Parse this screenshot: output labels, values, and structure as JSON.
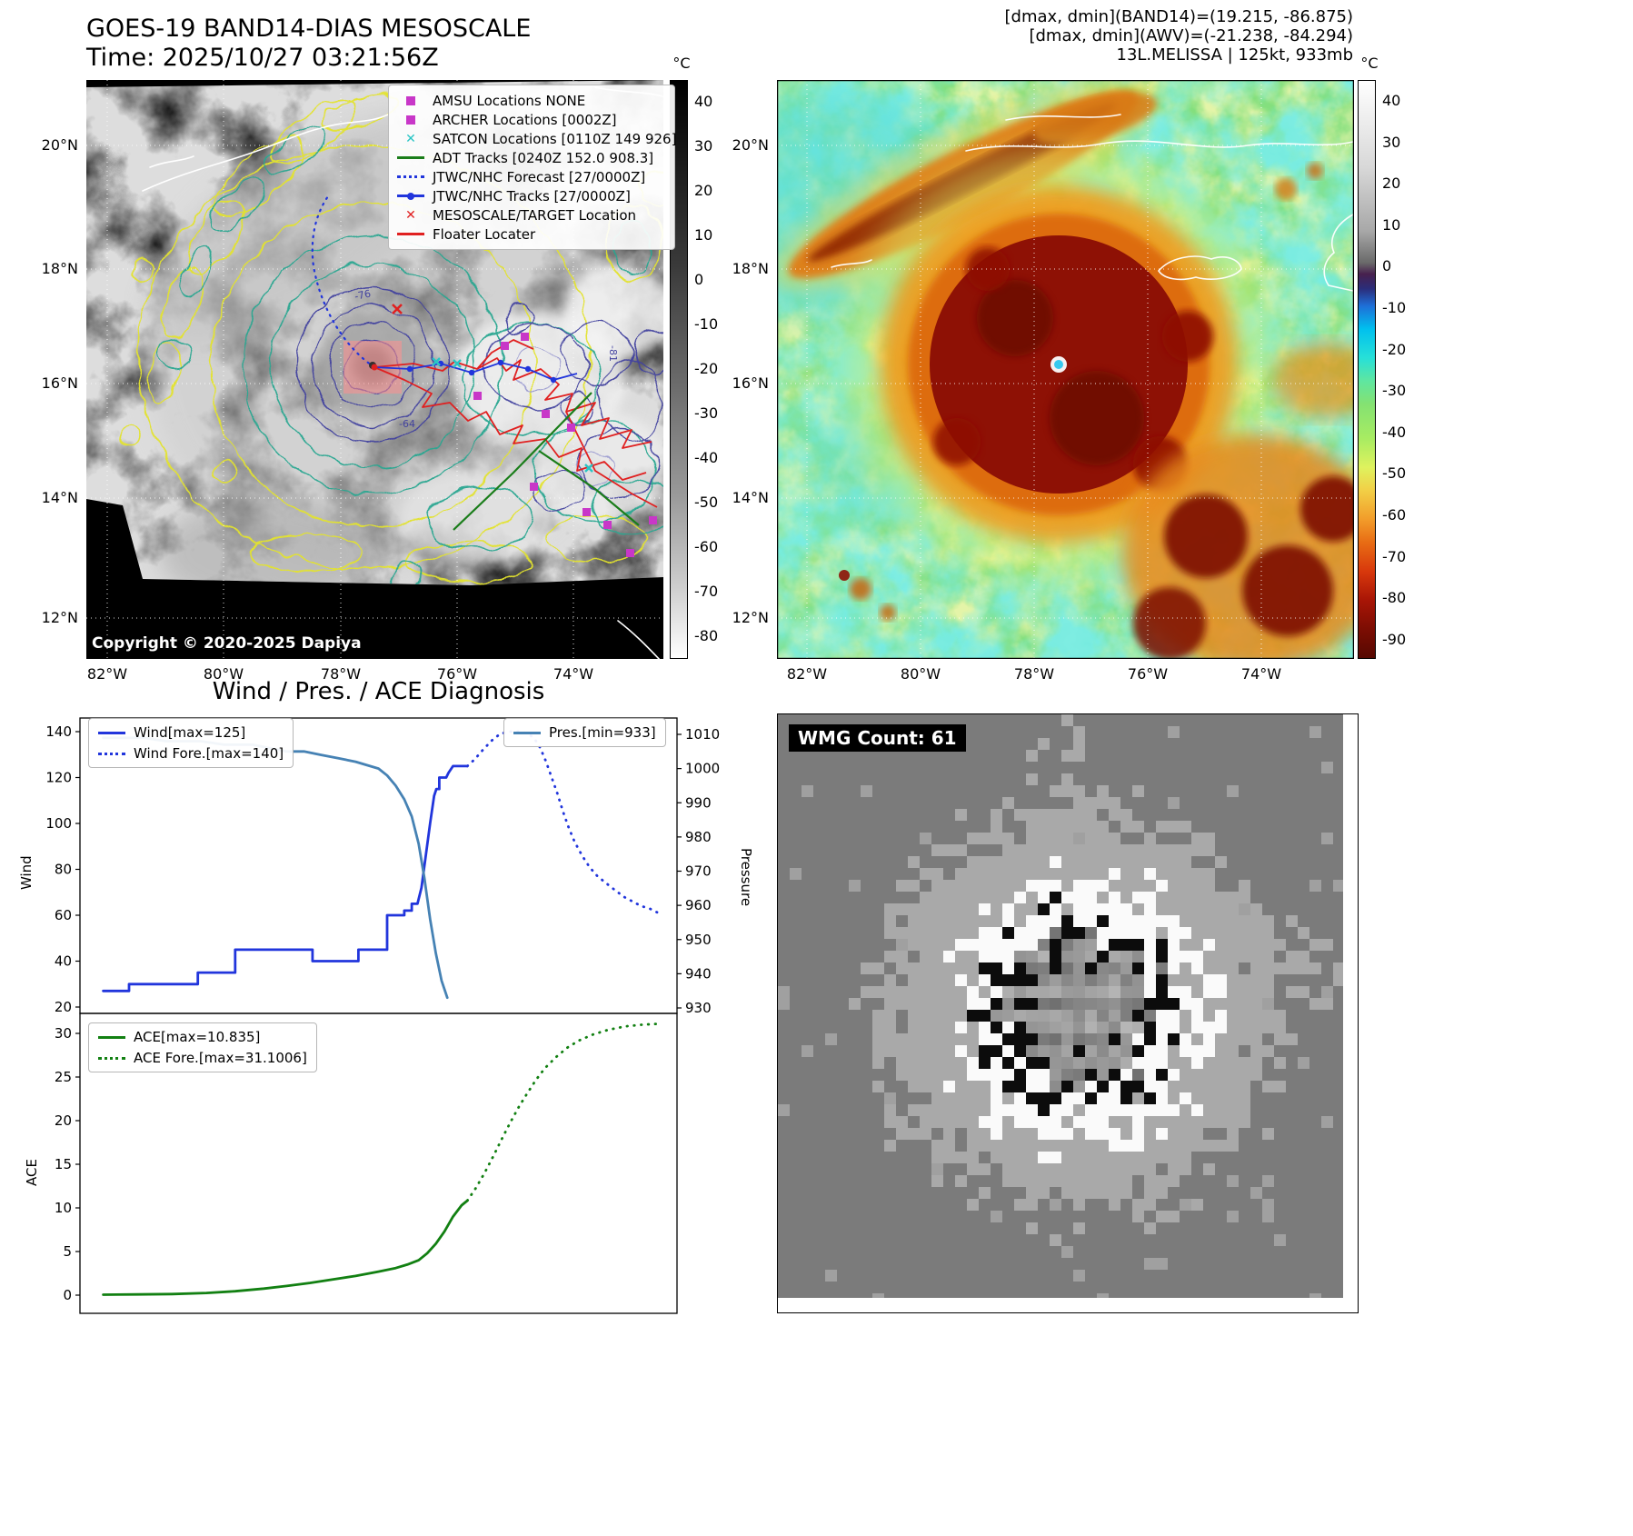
{
  "band14": {
    "title": "GOES-19 BAND14-DIAS MESOSCALE",
    "time_line": "Time: 2025/10/27 03:21:56Z",
    "copyright": "Copyright © 2020-2025 Dapiya",
    "colorbar_unit": "°C",
    "colorbar_ticks": [
      "40",
      "30",
      "20",
      "10",
      "0",
      "-10",
      "-20",
      "-30",
      "-40",
      "-50",
      "-60",
      "-70",
      "-80"
    ],
    "lat_ticks": [
      "20°N",
      "18°N",
      "16°N",
      "14°N",
      "12°N"
    ],
    "lon_ticks": [
      "82°W",
      "80°W",
      "78°W",
      "76°W",
      "74°W"
    ],
    "contour_labels": [
      "-76",
      "-64",
      "-81"
    ],
    "legend": [
      {
        "label": "AMSU Locations NONE",
        "marker": "square",
        "color": "#c837c8"
      },
      {
        "label": "ARCHER Locations [0002Z]",
        "marker": "square",
        "color": "#c837c8"
      },
      {
        "label": "SATCON Locations [0110Z 149 926]",
        "marker": "x",
        "color": "#29c5c5"
      },
      {
        "label": "ADT Tracks [0240Z 152.0 908.3]",
        "marker": "line",
        "color": "#1a7d1a"
      },
      {
        "label": "JTWC/NHC Forecast [27/0000Z]",
        "marker": "dotted",
        "color": "#2135dc"
      },
      {
        "label": "JTWC/NHC Tracks [27/0000Z]",
        "marker": "line-dot",
        "color": "#2135dc"
      },
      {
        "label": "MESOSCALE/TARGET Location",
        "marker": "x",
        "color": "#e02020"
      },
      {
        "label": "Floater Locater",
        "marker": "line",
        "color": "#e02020"
      }
    ]
  },
  "awv": {
    "header_lines": [
      "[dmax, dmin](BAND14)=(19.215, -86.875)",
      "[dmax, dmin](AWV)=(-21.238, -84.294)",
      "13L.MELISSA | 125kt, 933mb"
    ],
    "colorbar_unit": "°C",
    "colorbar_ticks": [
      "40",
      "30",
      "20",
      "10",
      "0",
      "-10",
      "-20",
      "-30",
      "-40",
      "-50",
      "-60",
      "-70",
      "-80",
      "-90"
    ],
    "lat_ticks": [
      "20°N",
      "18°N",
      "16°N",
      "14°N",
      "12°N"
    ],
    "lon_ticks": [
      "82°W",
      "80°W",
      "78°W",
      "76°W",
      "74°W"
    ]
  },
  "diagnosis": {
    "title": "Wind / Pres. / ACE Diagnosis",
    "wind_label": "Wind",
    "pressure_label": "Pressure",
    "ace_label": "ACE",
    "legend_wind": "Wind[max=125]",
    "legend_wind_fore": "Wind Fore.[max=140]",
    "legend_pres": "Pres.[min=933]",
    "legend_ace": "ACE[max=10.835]",
    "legend_ace_fore": "ACE Fore.[max=31.1006]"
  },
  "wmg": {
    "label": "WMG Count: 61"
  },
  "chart_data": [
    {
      "id": "wind_pressure",
      "type": "line",
      "title": "Wind / Pres. / ACE Diagnosis (wind and pressure panel)",
      "x_note": "normalized time 0-1, no x tick labels shown",
      "left_axis": {
        "label": "Wind",
        "lim": [
          20,
          140
        ],
        "ticks": [
          20,
          40,
          60,
          80,
          100,
          120,
          140
        ]
      },
      "right_axis": {
        "label": "Pressure",
        "lim": [
          930,
          1010
        ],
        "ticks": [
          930,
          940,
          950,
          960,
          970,
          980,
          990,
          1000,
          1010
        ]
      },
      "series": [
        {
          "name": "Wind[max=125]",
          "axis": "left",
          "style": "solid",
          "color": "#2135dc",
          "points": [
            [
              0.02,
              27
            ],
            [
              0.065,
              27
            ],
            [
              0.065,
              30
            ],
            [
              0.115,
              30
            ],
            [
              0.155,
              30
            ],
            [
              0.185,
              30
            ],
            [
              0.185,
              35
            ],
            [
              0.25,
              35
            ],
            [
              0.25,
              45
            ],
            [
              0.345,
              45
            ],
            [
              0.385,
              45
            ],
            [
              0.385,
              40
            ],
            [
              0.465,
              40
            ],
            [
              0.465,
              45
            ],
            [
              0.515,
              45
            ],
            [
              0.515,
              60
            ],
            [
              0.545,
              60
            ],
            [
              0.545,
              62
            ],
            [
              0.558,
              62
            ],
            [
              0.558,
              65
            ],
            [
              0.568,
              65
            ],
            [
              0.575,
              72
            ],
            [
              0.582,
              85
            ],
            [
              0.59,
              100
            ],
            [
              0.597,
              112
            ],
            [
              0.601,
              115
            ],
            [
              0.606,
              115
            ],
            [
              0.606,
              120
            ],
            [
              0.618,
              120
            ],
            [
              0.622,
              122
            ],
            [
              0.63,
              125
            ],
            [
              0.655,
              125
            ]
          ]
        },
        {
          "name": "Wind Fore.[max=140]",
          "axis": "left",
          "style": "dotted",
          "color": "#2135dc",
          "points": [
            [
              0.655,
              125
            ],
            [
              0.668,
              128
            ],
            [
              0.682,
              132
            ],
            [
              0.697,
              136
            ],
            [
              0.712,
              139
            ],
            [
              0.728,
              140
            ],
            [
              0.748,
              140
            ],
            [
              0.762,
              139
            ],
            [
              0.772,
              137
            ],
            [
              0.782,
              133
            ],
            [
              0.792,
              127
            ],
            [
              0.802,
              120
            ],
            [
              0.812,
              113
            ],
            [
              0.822,
              105
            ],
            [
              0.832,
              98
            ],
            [
              0.842,
              92
            ],
            [
              0.855,
              86
            ],
            [
              0.868,
              81
            ],
            [
              0.882,
              77
            ],
            [
              0.897,
              74
            ],
            [
              0.912,
              71
            ],
            [
              0.928,
              68
            ],
            [
              0.943,
              66
            ],
            [
              0.958,
              64
            ],
            [
              0.972,
              63
            ],
            [
              0.988,
              61
            ]
          ]
        },
        {
          "name": "Pres.[min=933]",
          "axis": "right",
          "style": "solid",
          "color": "#4682b4",
          "points": [
            [
              0.02,
              1009
            ],
            [
              0.09,
              1009
            ],
            [
              0.13,
              1008
            ],
            [
              0.19,
              1008
            ],
            [
              0.23,
              1007
            ],
            [
              0.28,
              1007
            ],
            [
              0.31,
              1006
            ],
            [
              0.34,
              1005
            ],
            [
              0.37,
              1005
            ],
            [
              0.4,
              1004
            ],
            [
              0.43,
              1003
            ],
            [
              0.46,
              1002
            ],
            [
              0.48,
              1001
            ],
            [
              0.5,
              1000
            ],
            [
              0.515,
              998
            ],
            [
              0.53,
              995
            ],
            [
              0.545,
              991
            ],
            [
              0.558,
              986
            ],
            [
              0.57,
              978
            ],
            [
              0.58,
              968
            ],
            [
              0.59,
              956
            ],
            [
              0.6,
              946
            ],
            [
              0.61,
              938
            ],
            [
              0.62,
              933
            ]
          ]
        }
      ]
    },
    {
      "id": "ace",
      "type": "line",
      "title": "Wind / Pres. / ACE Diagnosis (ACE panel)",
      "left_axis": {
        "label": "ACE",
        "lim": [
          0,
          31.5
        ],
        "ticks": [
          0,
          5,
          10,
          15,
          20,
          25,
          30
        ]
      },
      "series": [
        {
          "name": "ACE[max=10.835]",
          "axis": "left",
          "style": "solid",
          "color": "#128012",
          "points": [
            [
              0.02,
              0.05
            ],
            [
              0.08,
              0.08
            ],
            [
              0.14,
              0.12
            ],
            [
              0.2,
              0.25
            ],
            [
              0.25,
              0.45
            ],
            [
              0.3,
              0.75
            ],
            [
              0.34,
              1.05
            ],
            [
              0.38,
              1.4
            ],
            [
              0.42,
              1.8
            ],
            [
              0.46,
              2.2
            ],
            [
              0.5,
              2.7
            ],
            [
              0.53,
              3.1
            ],
            [
              0.55,
              3.5
            ],
            [
              0.57,
              4.0
            ],
            [
              0.585,
              4.8
            ],
            [
              0.6,
              5.9
            ],
            [
              0.615,
              7.3
            ],
            [
              0.63,
              9.0
            ],
            [
              0.645,
              10.3
            ],
            [
              0.655,
              10.835
            ]
          ]
        },
        {
          "name": "ACE Fore.[max=31.1006]",
          "axis": "left",
          "style": "dotted",
          "color": "#128012",
          "points": [
            [
              0.655,
              10.835
            ],
            [
              0.67,
              12.3
            ],
            [
              0.685,
              14.0
            ],
            [
              0.7,
              15.9
            ],
            [
              0.715,
              17.9
            ],
            [
              0.73,
              19.8
            ],
            [
              0.745,
              21.6
            ],
            [
              0.76,
              23.2
            ],
            [
              0.775,
              24.7
            ],
            [
              0.79,
              26.0
            ],
            [
              0.81,
              27.3
            ],
            [
              0.83,
              28.4
            ],
            [
              0.85,
              29.2
            ],
            [
              0.875,
              29.9
            ],
            [
              0.9,
              30.4
            ],
            [
              0.93,
              30.8
            ],
            [
              0.96,
              31.0
            ],
            [
              0.99,
              31.1
            ]
          ]
        }
      ]
    }
  ]
}
